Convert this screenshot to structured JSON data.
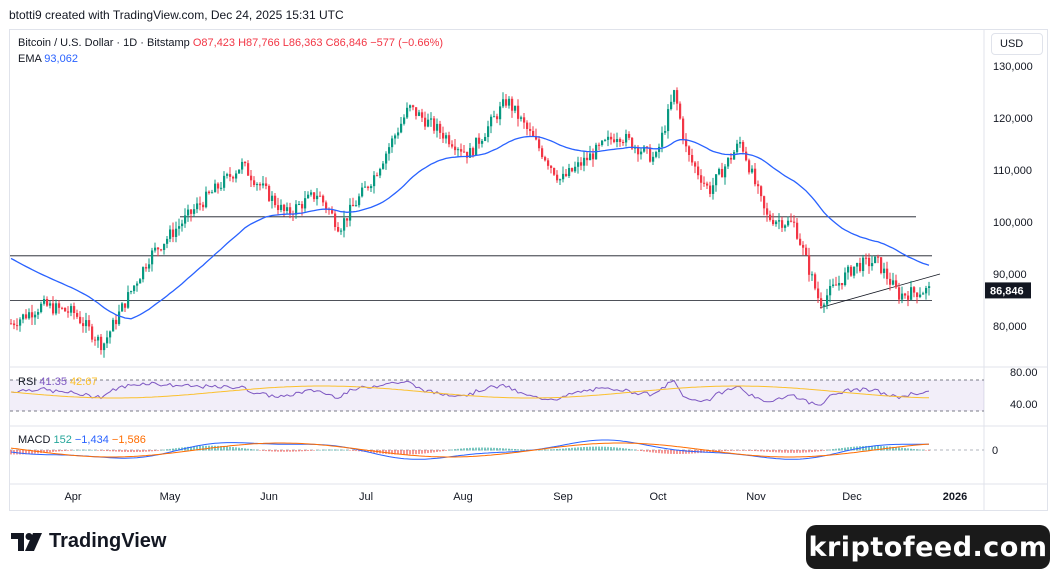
{
  "header": {
    "attribution": "btotti9 created with TradingView.com, Dec 24, 2025 15:31 UTC"
  },
  "legend": {
    "symbol": "Bitcoin / U.S. Dollar · 1D · Bitstamp",
    "open": "O87,423",
    "high": "H87,766",
    "low": "L86,363",
    "close": "C86,846",
    "change": "−577 (−0.66%)",
    "ema_label": "EMA",
    "ema_value": "93,062"
  },
  "rsi": {
    "label": "RSI",
    "value": "41.35",
    "ma": "42.67"
  },
  "macd": {
    "label": "MACD",
    "hist": "152",
    "macd": "−1,434",
    "signal": "−1,586"
  },
  "currency_button": "USD",
  "logo_text": "TradingView",
  "watermark": "kriptofeed.com",
  "colors": {
    "up": "#089981",
    "down": "#f23645",
    "ema": "#2962ff",
    "rsi": "#7e57c2",
    "rsi_ma": "#fbc02d",
    "macd": "#2962ff",
    "signal": "#ff6d00"
  },
  "chart_data": {
    "type": "candlestick",
    "y_ticks": [
      "130,000",
      "120,000",
      "110,000",
      "100,000",
      "90,000",
      "80,000"
    ],
    "last_price_label": "86,846",
    "rsi_ticks": [
      "80.00",
      "40.00"
    ],
    "macd_ticks": [
      "0"
    ],
    "x_ticks": [
      "Apr",
      "May",
      "Jun",
      "Jul",
      "Aug",
      "Sep",
      "Oct",
      "Nov",
      "Dec",
      "2026"
    ],
    "ylim": [
      70000,
      134000
    ],
    "horizontal_levels": [
      93500,
      84900,
      101000
    ],
    "close_series": [
      {
        "date": "2025-03-10",
        "close": 80500
      },
      {
        "date": "2025-03-20",
        "close": 84000
      },
      {
        "date": "2025-03-30",
        "close": 82500
      },
      {
        "date": "2025-04-08",
        "close": 76300
      },
      {
        "date": "2025-04-15",
        "close": 84500
      },
      {
        "date": "2025-04-23",
        "close": 93500
      },
      {
        "date": "2025-05-08",
        "close": 103000
      },
      {
        "date": "2025-05-22",
        "close": 111000
      },
      {
        "date": "2025-06-05",
        "close": 101500
      },
      {
        "date": "2025-06-15",
        "close": 105500
      },
      {
        "date": "2025-06-22",
        "close": 99000
      },
      {
        "date": "2025-07-03",
        "close": 109000
      },
      {
        "date": "2025-07-14",
        "close": 122000
      },
      {
        "date": "2025-08-02",
        "close": 113000
      },
      {
        "date": "2025-08-14",
        "close": 123500
      },
      {
        "date": "2025-08-31",
        "close": 108000
      },
      {
        "date": "2025-09-18",
        "close": 117000
      },
      {
        "date": "2025-09-30",
        "close": 112000
      },
      {
        "date": "2025-10-06",
        "close": 125000
      },
      {
        "date": "2025-10-10",
        "close": 113000
      },
      {
        "date": "2025-10-17",
        "close": 106000
      },
      {
        "date": "2025-10-27",
        "close": 115500
      },
      {
        "date": "2025-11-04",
        "close": 101000
      },
      {
        "date": "2025-11-13",
        "close": 99500
      },
      {
        "date": "2025-11-21",
        "close": 84500
      },
      {
        "date": "2025-12-02",
        "close": 91500
      },
      {
        "date": "2025-12-09",
        "close": 92500
      },
      {
        "date": "2025-12-16",
        "close": 86000
      },
      {
        "date": "2025-12-24",
        "close": 86846
      }
    ],
    "ema_last": 93062
  }
}
